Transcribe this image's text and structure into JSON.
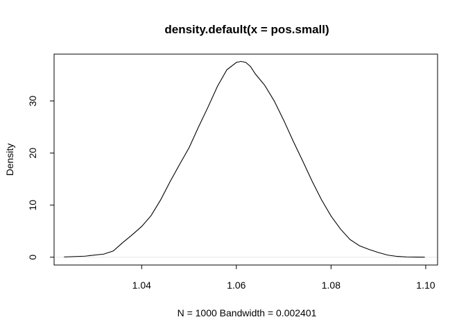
{
  "chart_data": {
    "type": "line",
    "title": "density.default(x = pos.small)",
    "xlabel": "N = 1000   Bandwidth = 0.002401",
    "ylabel": "Density",
    "xlim": [
      1.0215,
      1.1025
    ],
    "ylim": [
      -1.5,
      39
    ],
    "x_ticks": [
      1.04,
      1.06,
      1.08,
      1.1
    ],
    "x_tick_labels": [
      "1.04",
      "1.06",
      "1.08",
      "1.10"
    ],
    "y_ticks": [
      0,
      10,
      20,
      30
    ],
    "y_tick_labels": [
      "0",
      "10",
      "20",
      "30"
    ],
    "grid": false,
    "legend": "none",
    "series": [
      {
        "x": [
          1.0236,
          1.028,
          1.032,
          1.034,
          1.036,
          1.038,
          1.04,
          1.042,
          1.044,
          1.046,
          1.048,
          1.05,
          1.052,
          1.054,
          1.056,
          1.058,
          1.06,
          1.061,
          1.062,
          1.063,
          1.064,
          1.066,
          1.068,
          1.07,
          1.072,
          1.074,
          1.076,
          1.078,
          1.08,
          1.082,
          1.084,
          1.086,
          1.088,
          1.09,
          1.092,
          1.094,
          1.096,
          1.098,
          1.0998
        ],
        "y": [
          0.05,
          0.2,
          0.6,
          1.2,
          2.8,
          4.3,
          5.9,
          8.0,
          11.0,
          14.5,
          17.8,
          21.0,
          25.0,
          28.8,
          32.8,
          36.0,
          37.4,
          37.6,
          37.4,
          36.6,
          35.2,
          33.0,
          30.0,
          26.3,
          22.3,
          18.5,
          14.6,
          11.0,
          7.9,
          5.4,
          3.4,
          2.2,
          1.5,
          0.9,
          0.4,
          0.15,
          0.05,
          0.02,
          0.01
        ]
      }
    ]
  }
}
